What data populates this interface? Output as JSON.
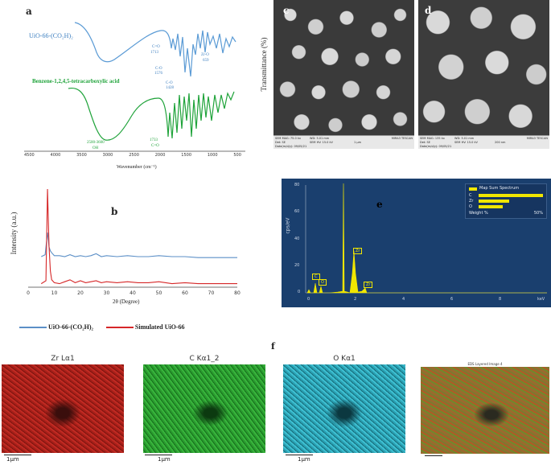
{
  "panel_labels": {
    "a": "a",
    "b": "b",
    "c": "c",
    "d": "d",
    "e": "e",
    "f": "f"
  },
  "ftir": {
    "series_top_label": "UiO-66-(CO₂H)₂",
    "series_bottom_label": "Benzene-1,2,4,5-tetracarboxylic acid",
    "x_ticks": [
      "4500",
      "4000",
      "3500",
      "3000",
      "2500",
      "2000",
      "1500",
      "1000",
      "500"
    ],
    "x_label": "Wavenumber (cm⁻¹)",
    "y_label": "Transmittance (%)",
    "annotations_top": [
      "C=O",
      "1713",
      "C-O",
      "1576",
      "C-O",
      "1428",
      "Zr-O",
      "659"
    ],
    "annotations_bottom": [
      "2500-3600",
      "OH",
      "1733",
      "C=O"
    ],
    "colors": {
      "top": "#5b9bd5",
      "bottom": "#1fa33a"
    }
  },
  "chart_data": {
    "type": "line",
    "x_label": "2θ (Degree)",
    "y_label": "Intensity (a.u.)",
    "x_ticks": [
      "0",
      "10",
      "20",
      "30",
      "40",
      "50",
      "60",
      "70",
      "80"
    ],
    "xlim": [
      0,
      80
    ],
    "series": [
      {
        "name": "UiO-66-(CO₂H)₂",
        "color": "#5b8fc7",
        "x": [
          5,
          6.5,
          7.4,
          8.0,
          8.5,
          9.0,
          10,
          12,
          14,
          16,
          18,
          20,
          22,
          24,
          26,
          28,
          30,
          34,
          38,
          42,
          46,
          50,
          55,
          60,
          65,
          70,
          75,
          80
        ],
        "y": [
          0.3,
          0.32,
          0.55,
          0.4,
          0.36,
          0.34,
          0.31,
          0.31,
          0.3,
          0.32,
          0.3,
          0.31,
          0.3,
          0.31,
          0.33,
          0.3,
          0.31,
          0.3,
          0.31,
          0.3,
          0.3,
          0.31,
          0.3,
          0.3,
          0.29,
          0.29,
          0.29,
          0.29
        ]
      },
      {
        "name": "Simulated UiO-66",
        "color": "#d62728",
        "x": [
          5,
          6.8,
          7.4,
          8.0,
          8.5,
          9.0,
          10,
          12,
          14,
          16,
          18,
          20,
          22,
          24,
          26,
          28,
          30,
          34,
          38,
          42,
          46,
          50,
          55,
          60,
          65,
          70,
          75,
          80
        ],
        "y": [
          0.02,
          0.05,
          1.0,
          0.4,
          0.15,
          0.06,
          0.03,
          0.02,
          0.04,
          0.06,
          0.03,
          0.05,
          0.03,
          0.04,
          0.05,
          0.03,
          0.04,
          0.03,
          0.04,
          0.03,
          0.03,
          0.04,
          0.02,
          0.03,
          0.02,
          0.02,
          0.02,
          0.02
        ]
      }
    ]
  },
  "xrd_legend": {
    "s1": "UiO-66-(CO₂H)₂",
    "s2": "Simulated UiO-66"
  },
  "sem_c": {
    "info_left": "SEM MAG: 75.0 kx",
    "info_mid": "Det: SE",
    "info_wd": "WD: 5.01 mm",
    "info_hv": "SEM HV: 15.0 kV",
    "scale": "1 μm",
    "brand": "MIRA3 TESCAN",
    "date": "Date(m/d/y): 09/05/21"
  },
  "sem_d": {
    "info_left": "SEM MAG: 135 kx",
    "info_mid": "Det: SE",
    "info_wd": "WD: 5.01 mm",
    "info_hv": "SEM HV: 15.0 kV",
    "scale": "200 nm",
    "brand": "MIRA3 TESCAN",
    "date": "Date(m/d/y): 09/05/21"
  },
  "edx": {
    "y_label": "cps/eV",
    "x_label": "keV",
    "y_ticks": [
      "80",
      "60",
      "40",
      "20",
      "0"
    ],
    "x_ticks": [
      "0",
      "2",
      "4",
      "6",
      "8"
    ],
    "peak_labels": [
      "C",
      "O",
      "Zr",
      "Zr"
    ],
    "legend_title": "Map Sum Spectrum",
    "legend_items": [
      {
        "el": "C",
        "frac": 1.0
      },
      {
        "el": "Zr",
        "frac": 0.48
      },
      {
        "el": "O",
        "frac": 0.38
      }
    ],
    "weight_label": "Weight %",
    "weight_value": "50%",
    "bg": "#1a3f6e"
  },
  "maps": {
    "titles": [
      "Zr Lα1",
      "C Kα1_2",
      "O Kα1",
      "EDS Layered Image 4"
    ],
    "scale": "1μm",
    "colors": [
      "#b3221c",
      "#2aa830",
      "#2fb0c4",
      "#8a7a3a"
    ]
  }
}
